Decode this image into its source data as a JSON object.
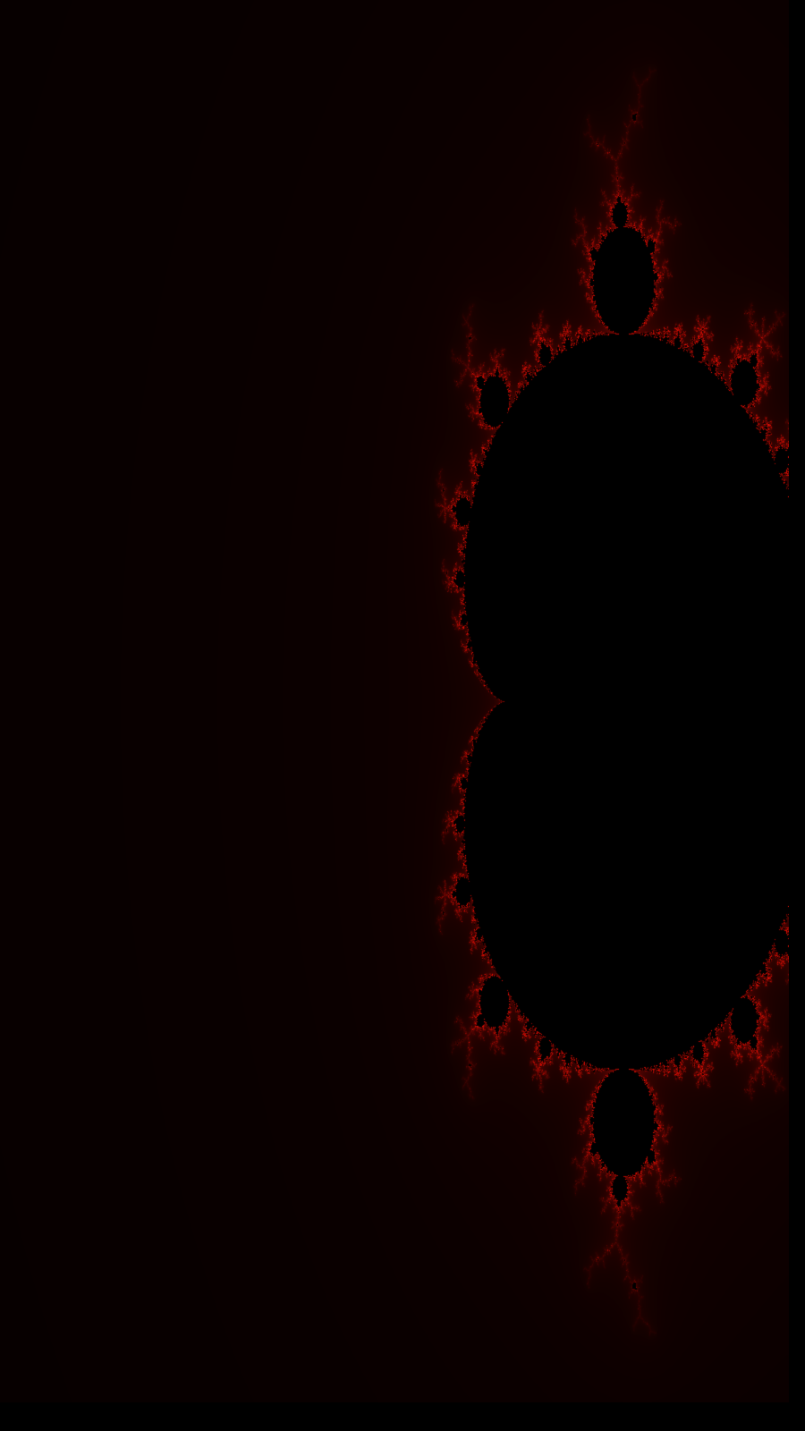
{
  "render": {
    "fractal": "mandelbrot",
    "orientation": "rotated-vertical",
    "center_re": -0.55,
    "center_im": 0.0,
    "span_re": 2.48,
    "span_im": 1.395,
    "max_iterations": 120
  },
  "colors": {
    "background": "#000000",
    "interior": "#000000",
    "glow": "#ff1a0a",
    "haze": "#2a0000"
  }
}
